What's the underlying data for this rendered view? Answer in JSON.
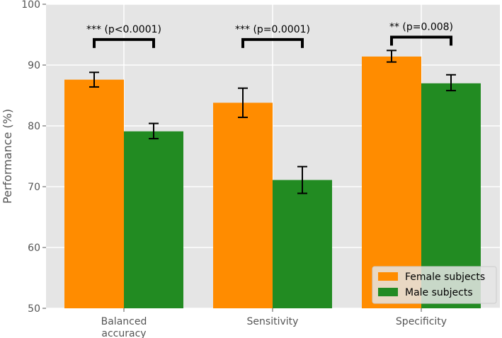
{
  "chart_data": {
    "type": "bar",
    "title": "",
    "xlabel": "",
    "ylabel": "Performance (%)",
    "ylim": [
      50,
      100
    ],
    "yticks": [
      50,
      60,
      70,
      80,
      90,
      100
    ],
    "grid": true,
    "legend_position": "bottom-right",
    "categories": [
      [
        "Balanced",
        "accuracy"
      ],
      [
        "Sensitivity"
      ],
      [
        "Specificity"
      ]
    ],
    "series": [
      {
        "name": "Female subjects",
        "color": "#ff8c00",
        "values": [
          87.6,
          83.8,
          91.4
        ],
        "err_low": [
          86.4,
          81.4,
          90.5
        ],
        "err_high": [
          88.8,
          86.2,
          92.4
        ]
      },
      {
        "name": "Male subjects",
        "color": "#228b22",
        "values": [
          79.1,
          71.1,
          87.0
        ],
        "err_low": [
          77.9,
          68.9,
          85.8
        ],
        "err_high": [
          80.4,
          73.3,
          88.4
        ]
      }
    ],
    "significance": [
      {
        "label": "*** (p<0.0001)",
        "y": 94.2
      },
      {
        "label": "*** (p=0.0001)",
        "y": 94.2
      },
      {
        "label": "** (p=0.008)",
        "y": 94.6
      }
    ]
  }
}
